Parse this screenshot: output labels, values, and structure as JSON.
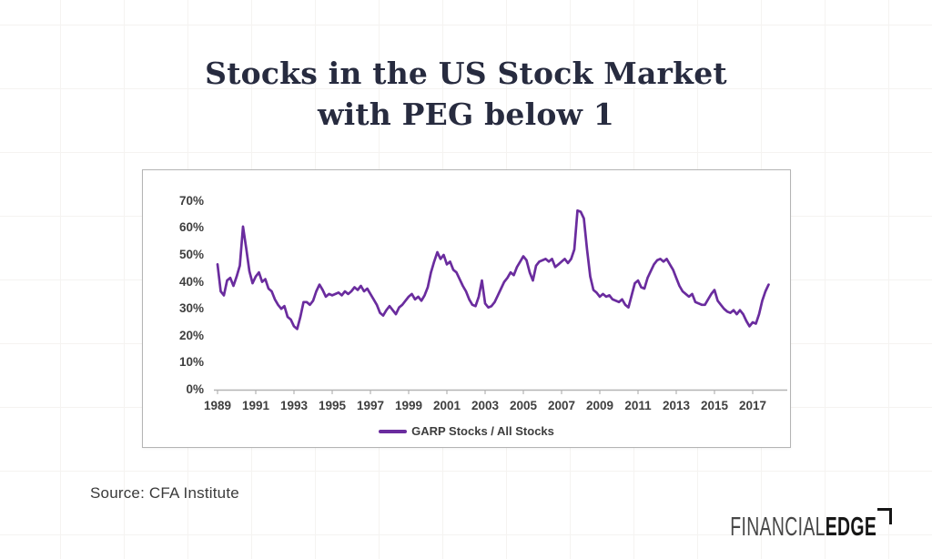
{
  "title": {
    "line1": "Stocks in the US Stock Market",
    "line2": "with PEG below 1",
    "color": "#272b3f"
  },
  "source": {
    "text": "Source: CFA Institute"
  },
  "logo": {
    "part1": "FINANCIAL",
    "part2": "EDGE"
  },
  "chart_data": {
    "type": "line",
    "title": "Stocks in the US Stock Market with PEG below 1",
    "xlabel": "",
    "ylabel": "",
    "ylim": [
      0,
      70
    ],
    "y_tick_step": 10,
    "y_tick_labels": [
      "0%",
      "10%",
      "20%",
      "30%",
      "40%",
      "50%",
      "60%",
      "70%"
    ],
    "x_tick_labels": [
      "1989",
      "1991",
      "1993",
      "1995",
      "1997",
      "1999",
      "2001",
      "2003",
      "2005",
      "2007",
      "2009",
      "2011",
      "2013",
      "2015",
      "2017"
    ],
    "x_tick_step_years": 2,
    "grid": false,
    "legend": {
      "label": "GARP Stocks / All Stocks",
      "position": "bottom-center"
    },
    "series": [
      {
        "name": "GARP Stocks / All Stocks",
        "color": "#6a2c9e",
        "unit": "%",
        "x_start_year": 1989,
        "x_step_years": 0.166667,
        "values": [
          46.5,
          36.5,
          35,
          40.5,
          41.5,
          38.5,
          42,
          46,
          60.5,
          52.5,
          44,
          39.5,
          42,
          43.5,
          40,
          41,
          37.5,
          36.5,
          33.5,
          31.5,
          30,
          31,
          27,
          26,
          23.5,
          22.5,
          27,
          32.5,
          32.5,
          31.5,
          33,
          36.5,
          39,
          37,
          34.5,
          35.5,
          35,
          35.5,
          36,
          35,
          36.5,
          35.5,
          36.5,
          38,
          37,
          38.5,
          36.5,
          37.5,
          35.5,
          33.5,
          31.5,
          28.5,
          27.5,
          29.5,
          31,
          29.5,
          28,
          30.5,
          31.5,
          33,
          34.5,
          35.5,
          33.5,
          34.5,
          33,
          35,
          38,
          43.5,
          47.5,
          51,
          48.5,
          50,
          46.5,
          47.5,
          44.5,
          43.5,
          41,
          38.5,
          36.5,
          33.5,
          31.5,
          31,
          34.5,
          40.5,
          32,
          30.5,
          31,
          32.5,
          35,
          37.5,
          40,
          41.5,
          43.5,
          42.5,
          45.5,
          47.5,
          49.5,
          48,
          43.5,
          40.5,
          46,
          47.5,
          48,
          48.5,
          47.5,
          48.5,
          45.5,
          46.5,
          47.5,
          48.5,
          47,
          48.5,
          52,
          66.5,
          66,
          63.5,
          52,
          42,
          37,
          36,
          34.5,
          35.5,
          34.5,
          35,
          33.5,
          33,
          32.5,
          33.5,
          31.5,
          30.5,
          35,
          39.5,
          40.5,
          38,
          37.5,
          41.5,
          44,
          46.5,
          48,
          48.5,
          47.5,
          48.5,
          46.5,
          44.5,
          41.5,
          38.5,
          36.5,
          35.5,
          34.5,
          35.5,
          32.5,
          32,
          31.5,
          31.5,
          33.5,
          35.5,
          37,
          33,
          31.5,
          30,
          29,
          28.5,
          29.5,
          28,
          29.5,
          28,
          25.5,
          23.5,
          25,
          24.5,
          28,
          33,
          36.5,
          39
        ]
      }
    ]
  }
}
